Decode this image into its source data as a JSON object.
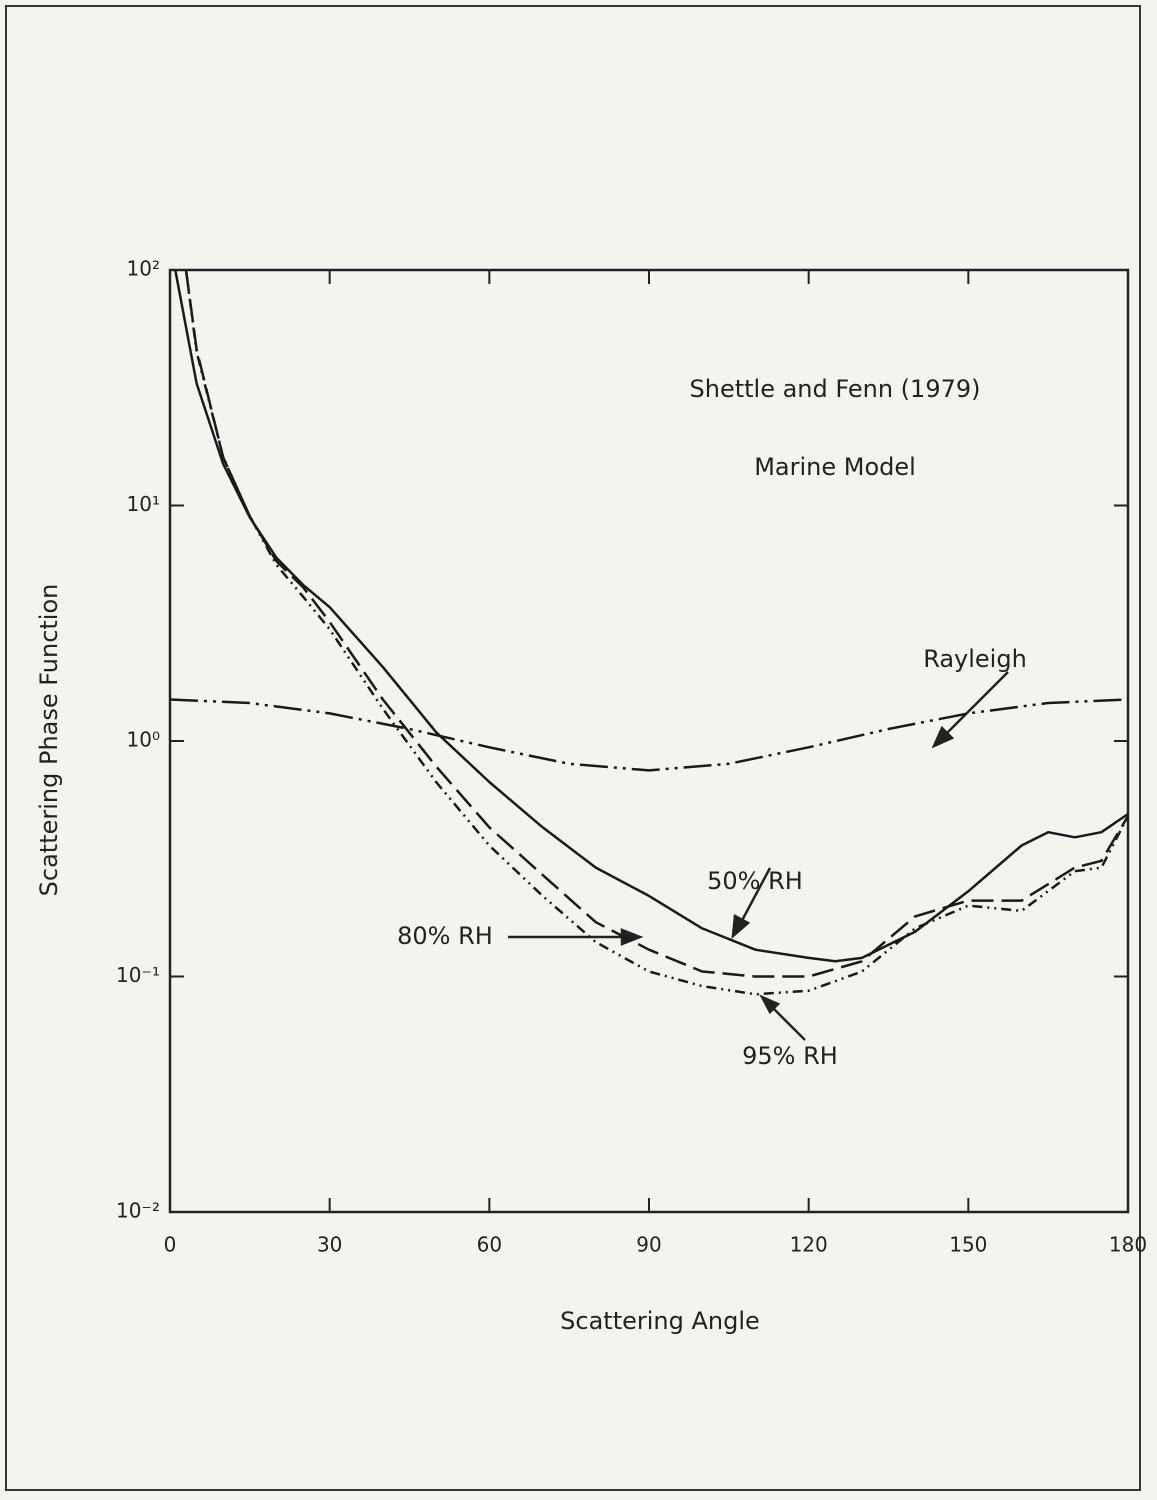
{
  "chart_data": {
    "type": "line",
    "annotations": [
      "Shettle and Fenn (1979)",
      "Marine Model"
    ],
    "x_label": "Scattering Angle",
    "y_label": "Scattering Phase Function",
    "xlim": [
      0,
      180
    ],
    "xticks": [
      0,
      30,
      60,
      90,
      120,
      150,
      180
    ],
    "ylim": [
      0.01,
      100
    ],
    "yticks": [
      {
        "value": 0.01,
        "label": "10⁻²"
      },
      {
        "value": 0.1,
        "label": "10⁻¹"
      },
      {
        "value": 1,
        "label": "10⁰"
      },
      {
        "value": 10,
        "label": "10¹"
      },
      {
        "value": 100,
        "label": "10²"
      }
    ],
    "log_y": true,
    "series": [
      {
        "name": "50% RH",
        "color": "#1a1a1a",
        "line_style": "solid",
        "x": [
          1,
          5,
          10,
          15,
          20,
          25,
          30,
          40,
          50,
          60,
          70,
          80,
          90,
          100,
          110,
          120,
          125,
          130,
          140,
          150,
          160,
          165,
          170,
          175,
          180
        ],
        "values": [
          100,
          33,
          15,
          8.9,
          6.0,
          4.6,
          3.7,
          2.06,
          1.09,
          0.67,
          0.43,
          0.29,
          0.22,
          0.16,
          0.13,
          0.12,
          0.116,
          0.12,
          0.155,
          0.23,
          0.36,
          0.41,
          0.39,
          0.41,
          0.49
        ]
      },
      {
        "name": "80% RH",
        "color": "#1a1a1a",
        "line_style": "dashed",
        "x": [
          3,
          5,
          10,
          15,
          20,
          25,
          30,
          40,
          50,
          60,
          70,
          80,
          90,
          100,
          110,
          120,
          130,
          140,
          150,
          160,
          170,
          175,
          180
        ],
        "values": [
          100,
          46,
          16,
          9,
          5.8,
          4.5,
          3.2,
          1.5,
          0.78,
          0.43,
          0.27,
          0.17,
          0.13,
          0.105,
          0.1,
          0.1,
          0.116,
          0.18,
          0.21,
          0.21,
          0.29,
          0.31,
          0.48
        ]
      },
      {
        "name": "95% RH",
        "color": "#1a1a1a",
        "line_style": "dash-dot-dot",
        "x": [
          3,
          5,
          10,
          15,
          20,
          25,
          30,
          40,
          50,
          60,
          70,
          80,
          90,
          100,
          110,
          120,
          130,
          140,
          150,
          160,
          170,
          175,
          180
        ],
        "values": [
          100,
          45,
          16,
          9,
          5.6,
          4.1,
          2.98,
          1.37,
          0.67,
          0.36,
          0.22,
          0.14,
          0.105,
          0.091,
          0.084,
          0.087,
          0.105,
          0.16,
          0.2,
          0.19,
          0.28,
          0.29,
          0.48
        ]
      },
      {
        "name": "Rayleigh",
        "color": "#1a1a1a",
        "line_style": "long-dash-dot-dot",
        "x": [
          0,
          15,
          30,
          45,
          60,
          75,
          90,
          105,
          120,
          135,
          150,
          165,
          180
        ],
        "values": [
          1.5,
          1.45,
          1.31,
          1.125,
          0.94,
          0.8,
          0.75,
          0.8,
          0.94,
          1.125,
          1.31,
          1.45,
          1.5
        ]
      }
    ]
  }
}
